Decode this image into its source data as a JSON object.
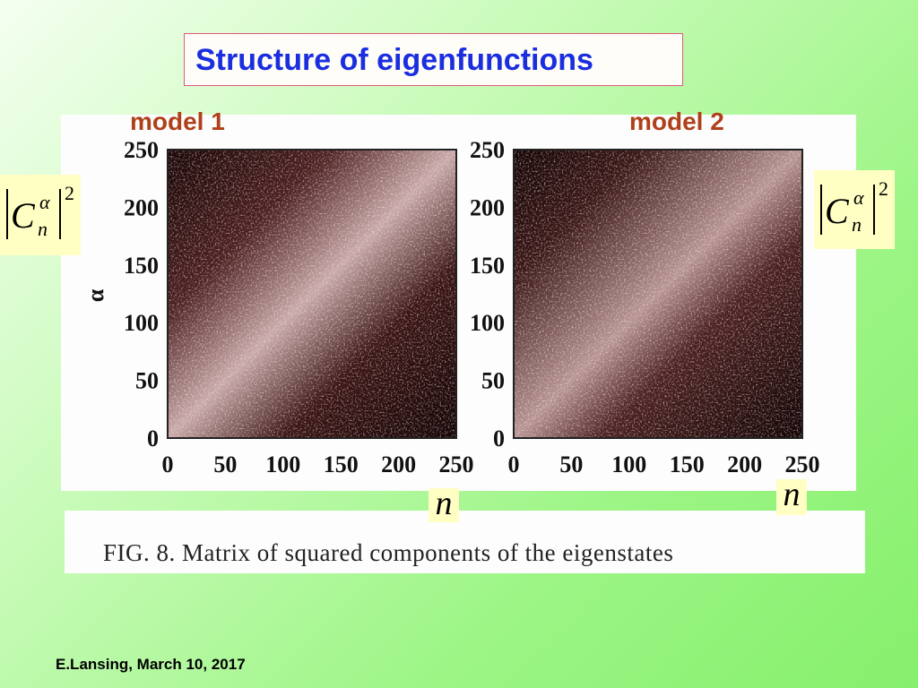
{
  "title": "Structure of eigenfunctions",
  "panels": [
    {
      "label": "model  1",
      "ylabel": "α",
      "xlabel": "n",
      "formula": {
        "symbol": "C",
        "superscript": "α",
        "subscript": "n",
        "power": "2"
      },
      "xticks": [
        0,
        50,
        100,
        150,
        200,
        250
      ],
      "yticks": [
        0,
        50,
        100,
        150,
        200,
        250
      ]
    },
    {
      "label": "model  2",
      "xlabel": "n",
      "formula": {
        "symbol": "C",
        "superscript": "α",
        "subscript": "n",
        "power": "2"
      },
      "xticks": [
        0,
        50,
        100,
        150,
        200,
        250
      ],
      "yticks": [
        0,
        50,
        100,
        150,
        200,
        250
      ]
    }
  ],
  "caption": "FIG. 8. Matrix of squared components of the eigenstates",
  "footer": "E.Lansing, March 10, 2017"
}
